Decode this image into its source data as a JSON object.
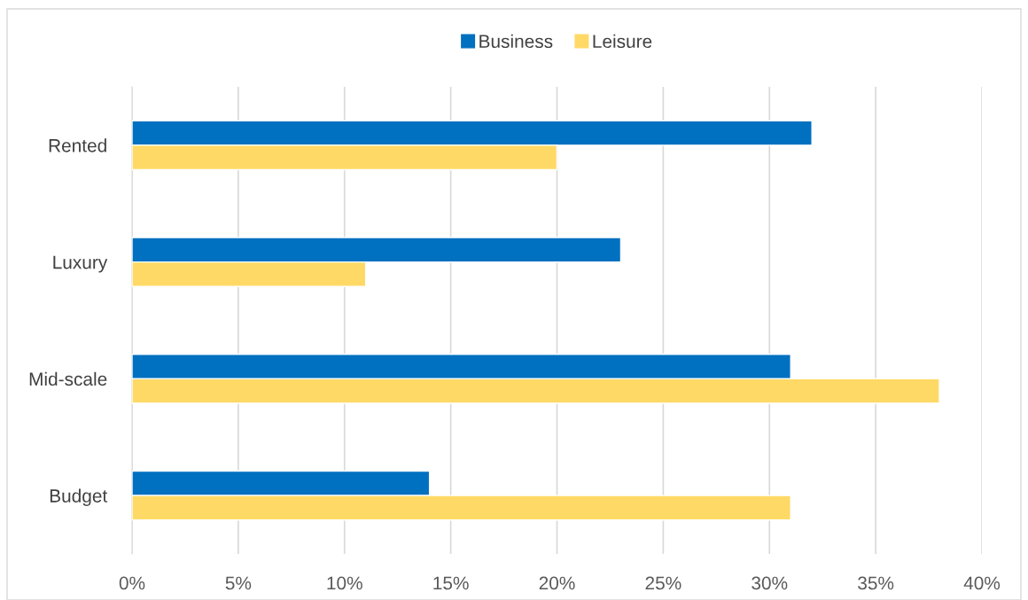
{
  "chart_data": {
    "type": "bar",
    "orientation": "horizontal",
    "categories": [
      "Rented",
      "Luxury",
      "Mid-scale",
      "Budget"
    ],
    "series": [
      {
        "name": "Business",
        "color": "#0070c0",
        "values": [
          32,
          23,
          31,
          14
        ]
      },
      {
        "name": "Leisure",
        "color": "#ffd966",
        "values": [
          20,
          11,
          38,
          31
        ]
      }
    ],
    "xlim": [
      0,
      40
    ],
    "xticks": [
      {
        "value": 0,
        "label": "0%"
      },
      {
        "value": 5,
        "label": "5%"
      },
      {
        "value": 10,
        "label": "10%"
      },
      {
        "value": 15,
        "label": "15%"
      },
      {
        "value": 20,
        "label": "20%"
      },
      {
        "value": 25,
        "label": "25%"
      },
      {
        "value": 30,
        "label": "30%"
      },
      {
        "value": 35,
        "label": "35%"
      },
      {
        "value": 40,
        "label": "40%"
      }
    ],
    "grid": "x",
    "legend": "top"
  }
}
